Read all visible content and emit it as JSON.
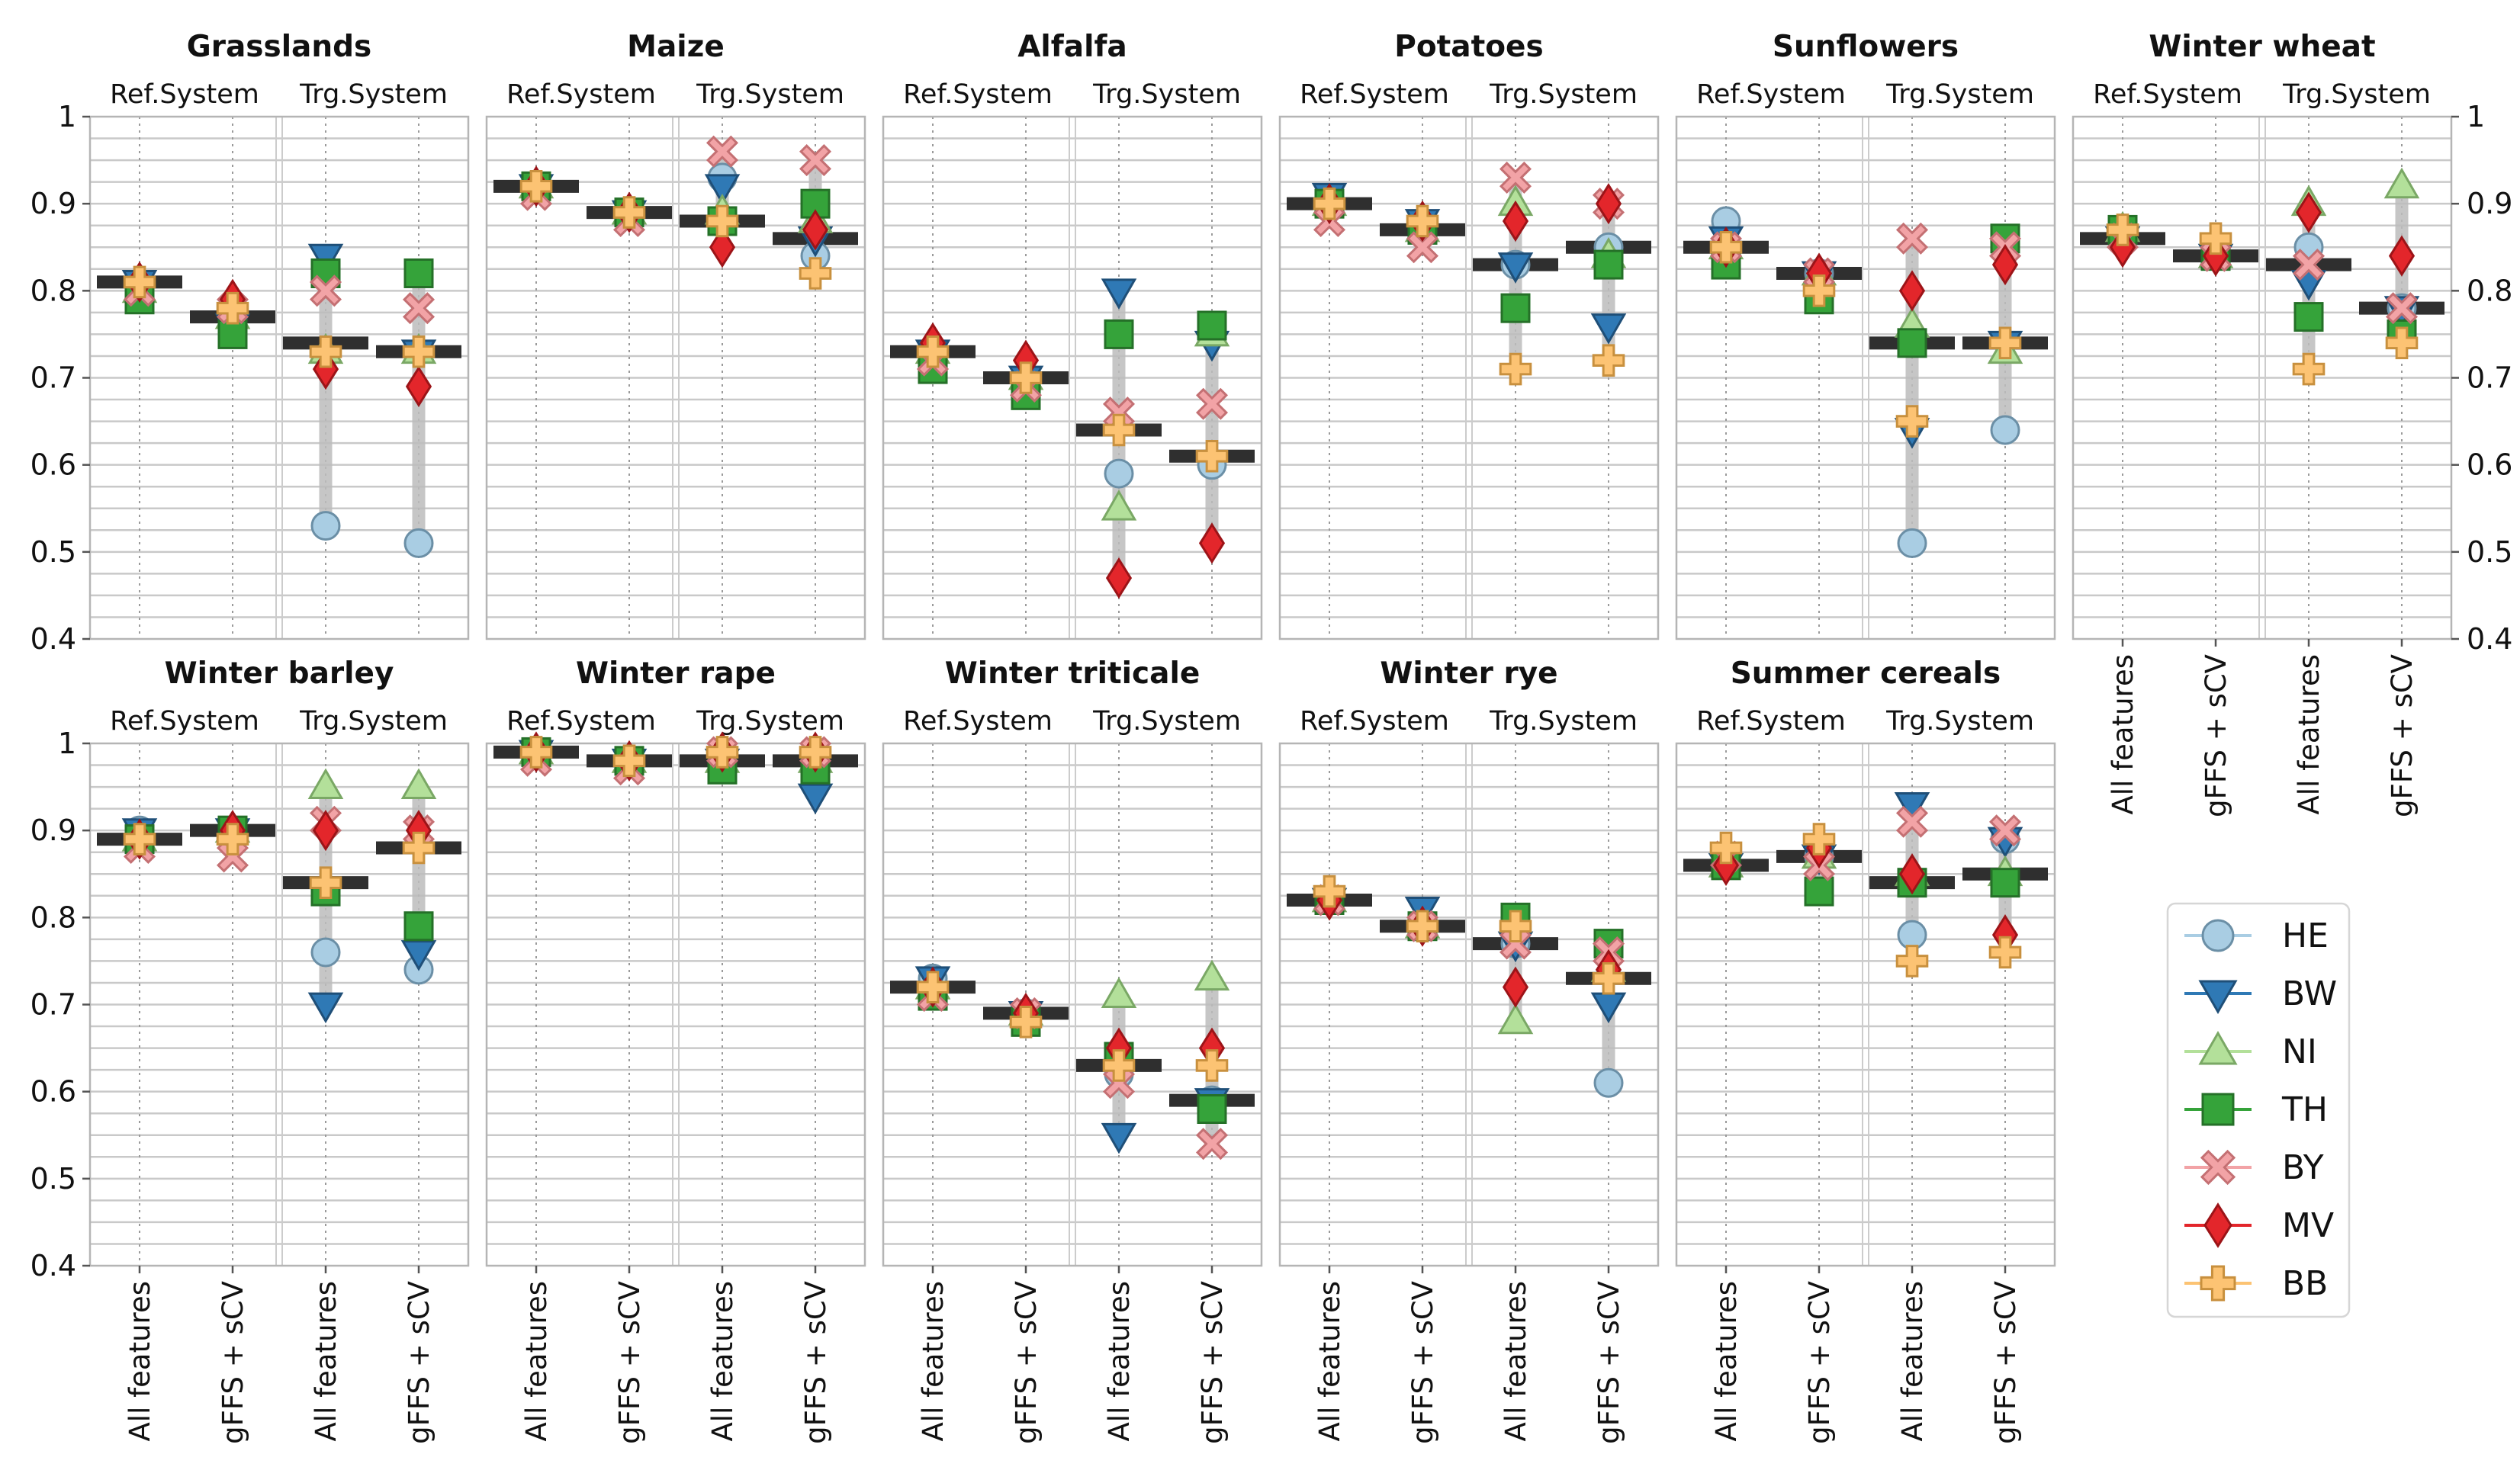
{
  "chart_data": {
    "type": "scatter",
    "y_range": [
      0.4,
      1.0
    ],
    "y_ticks": [
      "0.4",
      "0.5",
      "0.6",
      "0.7",
      "0.8",
      "0.9",
      "1"
    ],
    "system_labels": [
      "Ref.System",
      "Trg.System"
    ],
    "x_labels": [
      "All features",
      "gFFS + sCV",
      "All features",
      "gFFS + sCV"
    ],
    "series": [
      {
        "name": "HE",
        "color": "#a9cde3",
        "edge": "#6b8fa6",
        "marker": "circle"
      },
      {
        "name": "BW",
        "color": "#2f79b5",
        "edge": "#1f4f78",
        "marker": "triangle-down"
      },
      {
        "name": "NI",
        "color": "#b3e09a",
        "edge": "#7aa865",
        "marker": "triangle-up"
      },
      {
        "name": "TH",
        "color": "#35a33a",
        "edge": "#257028",
        "marker": "square"
      },
      {
        "name": "BY",
        "color": "#f2a3a6",
        "edge": "#c47073",
        "marker": "x"
      },
      {
        "name": "MV",
        "color": "#e3262b",
        "edge": "#9c1418",
        "marker": "diamond"
      },
      {
        "name": "BB",
        "color": "#fcc373",
        "edge": "#c8903e",
        "marker": "plus"
      }
    ],
    "panels": [
      {
        "title": "Grasslands",
        "means": [
          0.81,
          0.77,
          0.74,
          0.73
        ],
        "values": {
          "HE": [
            0.8,
            0.77,
            0.53,
            0.51
          ],
          "BW": [
            0.81,
            0.76,
            0.84,
            0.73
          ],
          "NI": [
            0.8,
            0.77,
            0.73,
            0.73
          ],
          "TH": [
            0.79,
            0.75,
            0.82,
            0.82
          ],
          "BY": [
            0.8,
            0.78,
            0.8,
            0.78
          ],
          "MV": [
            0.81,
            0.79,
            0.71,
            0.69
          ],
          "BB": [
            0.81,
            0.78,
            0.73,
            0.73
          ]
        }
      },
      {
        "title": "Maize",
        "means": [
          0.92,
          0.89,
          0.88,
          0.86
        ],
        "values": {
          "HE": [
            0.92,
            0.89,
            0.93,
            0.84
          ],
          "BW": [
            0.92,
            0.89,
            0.92,
            0.86
          ],
          "NI": [
            0.92,
            0.89,
            0.89,
            0.88
          ],
          "TH": [
            0.92,
            0.89,
            0.88,
            0.9
          ],
          "BY": [
            0.91,
            0.88,
            0.96,
            0.95
          ],
          "MV": [
            0.92,
            0.89,
            0.85,
            0.87
          ],
          "BB": [
            0.92,
            0.89,
            0.88,
            0.82
          ]
        }
      },
      {
        "title": "Alfalfa",
        "means": [
          0.73,
          0.7,
          0.64,
          0.61
        ],
        "values": {
          "HE": [
            0.73,
            0.7,
            0.59,
            0.6
          ],
          "BW": [
            0.73,
            0.7,
            0.8,
            0.74
          ],
          "NI": [
            0.73,
            0.7,
            0.55,
            0.75
          ],
          "TH": [
            0.71,
            0.68,
            0.75,
            0.76
          ],
          "BY": [
            0.72,
            0.69,
            0.66,
            0.67
          ],
          "MV": [
            0.74,
            0.72,
            0.47,
            0.51
          ],
          "BB": [
            0.73,
            0.7,
            0.64,
            0.61
          ]
        }
      },
      {
        "title": "Potatoes",
        "means": [
          0.9,
          0.87,
          0.83,
          0.85
        ],
        "values": {
          "HE": [
            0.9,
            0.87,
            0.83,
            0.85
          ],
          "BW": [
            0.91,
            0.88,
            0.83,
            0.76
          ],
          "NI": [
            0.9,
            0.87,
            0.9,
            0.84
          ],
          "TH": [
            0.9,
            0.87,
            0.78,
            0.83
          ],
          "BY": [
            0.88,
            0.85,
            0.93,
            0.9
          ],
          "MV": [
            0.9,
            0.88,
            0.88,
            0.9
          ],
          "BB": [
            0.9,
            0.88,
            0.71,
            0.72
          ]
        }
      },
      {
        "title": "Sunflowers",
        "means": [
          0.85,
          0.82,
          0.74,
          0.74
        ],
        "values": {
          "HE": [
            0.88,
            0.82,
            0.51,
            0.64
          ],
          "BW": [
            0.86,
            0.82,
            0.64,
            0.74
          ],
          "NI": [
            0.85,
            0.82,
            0.76,
            0.73
          ],
          "TH": [
            0.83,
            0.79,
            0.74,
            0.86
          ],
          "BY": [
            0.85,
            0.82,
            0.86,
            0.85
          ],
          "MV": [
            0.85,
            0.82,
            0.8,
            0.83
          ],
          "BB": [
            0.85,
            0.8,
            0.65,
            0.74
          ]
        }
      },
      {
        "title": "Winter wheat",
        "means": [
          0.86,
          0.84,
          0.83,
          0.78
        ],
        "values": {
          "HE": [
            0.86,
            0.84,
            0.85,
            0.78
          ],
          "BW": [
            0.86,
            0.84,
            0.81,
            0.78
          ],
          "NI": [
            0.87,
            0.84,
            0.9,
            0.92
          ],
          "TH": [
            0.87,
            0.84,
            0.77,
            0.75
          ],
          "BY": [
            0.86,
            0.84,
            0.83,
            0.78
          ],
          "MV": [
            0.85,
            0.84,
            0.89,
            0.84
          ],
          "BB": [
            0.87,
            0.86,
            0.71,
            0.74
          ]
        }
      },
      {
        "title": "Winter barley",
        "means": [
          0.89,
          0.9,
          0.84,
          0.88
        ],
        "values": {
          "HE": [
            0.9,
            0.9,
            0.76,
            0.74
          ],
          "BW": [
            0.9,
            0.9,
            0.7,
            0.76
          ],
          "NI": [
            0.89,
            0.9,
            0.95,
            0.95
          ],
          "TH": [
            0.89,
            0.9,
            0.83,
            0.79
          ],
          "BY": [
            0.88,
            0.87,
            0.91,
            0.9
          ],
          "MV": [
            0.89,
            0.9,
            0.9,
            0.9
          ],
          "BB": [
            0.89,
            0.89,
            0.84,
            0.88
          ]
        }
      },
      {
        "title": "Winter rape",
        "means": [
          0.99,
          0.98,
          0.98,
          0.98
        ],
        "values": {
          "HE": [
            0.99,
            0.98,
            0.98,
            0.97
          ],
          "BW": [
            0.99,
            0.98,
            0.98,
            0.94
          ],
          "NI": [
            0.99,
            0.98,
            0.98,
            0.98
          ],
          "TH": [
            0.99,
            0.98,
            0.97,
            0.97
          ],
          "BY": [
            0.98,
            0.97,
            0.99,
            0.99
          ],
          "MV": [
            0.99,
            0.98,
            0.99,
            0.99
          ],
          "BB": [
            0.99,
            0.98,
            0.99,
            0.99
          ]
        }
      },
      {
        "title": "Winter triticale",
        "means": [
          0.72,
          0.69,
          0.63,
          0.59
        ],
        "values": {
          "HE": [
            0.73,
            0.69,
            0.62,
            0.59
          ],
          "BW": [
            0.73,
            0.69,
            0.55,
            0.59
          ],
          "NI": [
            0.72,
            0.69,
            0.71,
            0.73
          ],
          "TH": [
            0.71,
            0.68,
            0.64,
            0.58
          ],
          "BY": [
            0.71,
            0.69,
            0.61,
            0.54
          ],
          "MV": [
            0.72,
            0.69,
            0.65,
            0.65
          ],
          "BB": [
            0.72,
            0.68,
            0.63,
            0.63
          ]
        }
      },
      {
        "title": "Winter rye",
        "means": [
          0.82,
          0.79,
          0.77,
          0.73
        ],
        "values": {
          "HE": [
            0.82,
            0.79,
            0.77,
            0.61
          ],
          "BW": [
            0.82,
            0.81,
            0.77,
            0.7
          ],
          "NI": [
            0.82,
            0.79,
            0.68,
            0.74
          ],
          "TH": [
            0.82,
            0.79,
            0.8,
            0.77
          ],
          "BY": [
            0.82,
            0.79,
            0.77,
            0.76
          ],
          "MV": [
            0.82,
            0.79,
            0.72,
            0.74
          ],
          "BB": [
            0.83,
            0.79,
            0.79,
            0.73
          ]
        }
      },
      {
        "title": "Summer cereals",
        "means": [
          0.86,
          0.87,
          0.84,
          0.85
        ],
        "values": {
          "HE": [
            0.86,
            0.87,
            0.78,
            0.89
          ],
          "BW": [
            0.86,
            0.87,
            0.93,
            0.89
          ],
          "NI": [
            0.86,
            0.87,
            0.85,
            0.85
          ],
          "TH": [
            0.86,
            0.83,
            0.84,
            0.84
          ],
          "BY": [
            0.87,
            0.86,
            0.91,
            0.9
          ],
          "MV": [
            0.86,
            0.88,
            0.85,
            0.78
          ],
          "BB": [
            0.88,
            0.89,
            0.75,
            0.76
          ]
        }
      }
    ]
  }
}
